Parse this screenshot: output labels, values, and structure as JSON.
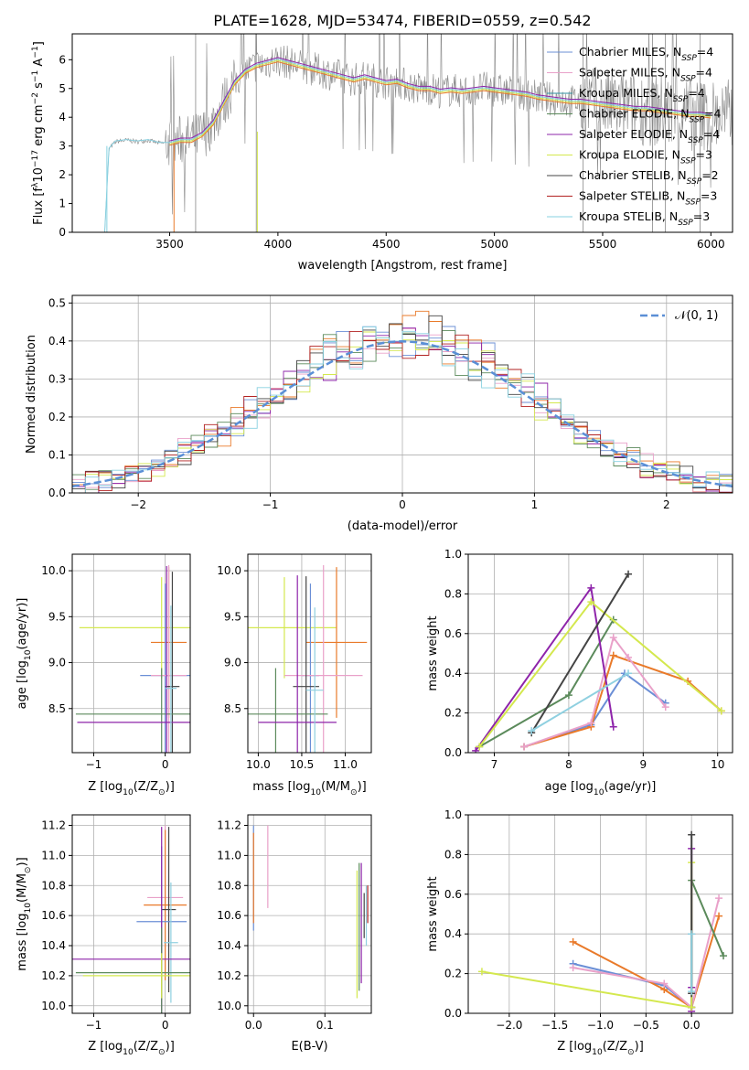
{
  "colors": {
    "series": [
      "#6b8fd6",
      "#e9a1c9",
      "#2e8fa0",
      "#5b8a5b",
      "#8e24aa",
      "#d4e84e",
      "#444444",
      "#b22222",
      "#87d0e0"
    ],
    "marker_series": [
      "#6b8fd6",
      "#e97a2a",
      "#e9a1c9",
      "#5b8a5b",
      "#8e24aa",
      "#d4e84e",
      "#444444",
      "#8fd0e0"
    ],
    "normal_line": "#5a8fd6",
    "noise": "#888888"
  },
  "chart_data": [
    {
      "id": "spectrum",
      "type": "line",
      "title": "PLATE=1628, MJD=53474, FIBERID=0559, z=0.542",
      "xlabel": "wavelength [Angstrom, rest frame]",
      "ylabel": "Flux [f",
      "ylabel_parts": [
        "Flux [f",
        "λ",
        "10",
        "−17",
        " erg cm",
        "−2",
        " s",
        "−1",
        " A",
        "−1",
        "]"
      ],
      "xlim": [
        3050,
        6100
      ],
      "ylim": [
        0,
        6.9
      ],
      "xticks": [
        "3500",
        "4000",
        "4500",
        "5000",
        "5500",
        "6000"
      ],
      "yticks": [
        "0",
        "1",
        "2",
        "3",
        "4",
        "5",
        "6"
      ],
      "legend_position": "top-right",
      "legend": [
        {
          "name": "Chabrier MILES, N",
          "nssp": "4"
        },
        {
          "name": "Salpeter MILES, N",
          "nssp": "4"
        },
        {
          "name": "Kroupa MILES, N",
          "nssp": "4"
        },
        {
          "name": "Chabrier ELODIE, N",
          "nssp": "4"
        },
        {
          "name": "Salpeter ELODIE, N",
          "nssp": "4"
        },
        {
          "name": "Kroupa ELODIE, N",
          "nssp": "3"
        },
        {
          "name": "Chabrier STELIB, N",
          "nssp": "2"
        },
        {
          "name": "Salpeter STELIB, N",
          "nssp": "3"
        },
        {
          "name": "Kroupa STELIB, N",
          "nssp": "3"
        }
      ],
      "model_curve": {
        "x": [
          3200,
          3220,
          3250,
          3300,
          3350,
          3400,
          3450,
          3500,
          3550,
          3600,
          3650,
          3700,
          3750,
          3800,
          3850,
          3900,
          3950,
          4000,
          4050,
          4100,
          4150,
          4200,
          4250,
          4300,
          4350,
          4400,
          4450,
          4500,
          4550,
          4600,
          4650,
          4700,
          4750,
          4800,
          4850,
          4900,
          4950,
          5000,
          5050,
          5100,
          5150,
          5200,
          5250,
          5300,
          5350,
          5400,
          5450,
          5500,
          5550,
          5600,
          5650,
          5700,
          5750,
          5800,
          5850,
          5900,
          5950,
          6000
        ],
        "y": [
          0,
          2.9,
          3.15,
          3.2,
          3.15,
          3.2,
          3.1,
          3.1,
          3.2,
          3.2,
          3.4,
          3.8,
          4.5,
          5.2,
          5.6,
          5.8,
          5.9,
          6.0,
          5.9,
          5.8,
          5.7,
          5.6,
          5.5,
          5.4,
          5.3,
          5.4,
          5.3,
          5.2,
          5.25,
          5.1,
          5.0,
          5.0,
          4.9,
          4.95,
          4.9,
          4.95,
          5.0,
          4.95,
          4.9,
          4.85,
          4.8,
          4.7,
          4.65,
          4.6,
          4.55,
          4.55,
          4.5,
          4.45,
          4.4,
          4.35,
          4.3,
          4.3,
          4.25,
          4.2,
          4.15,
          4.1,
          4.1,
          4.05
        ]
      }
    },
    {
      "id": "residuals",
      "type": "line",
      "xlabel": "(data-model)/error",
      "ylabel": "Normed distribution",
      "xlim": [
        -2.5,
        2.5
      ],
      "ylim": [
        0,
        0.52
      ],
      "xticks": [
        {
          "v": -2,
          "t": "−2"
        },
        {
          "v": -1,
          "t": "−1"
        },
        {
          "v": 0,
          "t": "0"
        },
        {
          "v": 1,
          "t": "1"
        },
        {
          "v": 2,
          "t": "2"
        }
      ],
      "yticks": [
        "0.0",
        "0.1",
        "0.2",
        "0.3",
        "0.4",
        "0.5"
      ],
      "legend": "𝒩(0, 1)",
      "legend_position": "top-right",
      "normal": {
        "mean": 0,
        "sigma": 1
      }
    },
    {
      "id": "age-vs-Z",
      "type": "scatter",
      "xlabel": "Z [log",
      "xlabel_parts": [
        "Z [log",
        "10",
        "(Z/Z",
        "⊙",
        ")]"
      ],
      "ylabel_parts": [
        "age  [log",
        "10",
        "(age/yr)]"
      ],
      "xlim": [
        -1.3,
        0.35
      ],
      "ylim": [
        8.02,
        10.18
      ],
      "xticks": [
        {
          "v": -1,
          "t": "−1"
        },
        {
          "v": 0,
          "t": "0"
        }
      ],
      "yticks": [
        "8.5",
        "9.0",
        "9.5",
        "10.0"
      ]
    },
    {
      "id": "age-vs-mass",
      "type": "scatter",
      "xlabel_parts": [
        "mass [log",
        "10",
        "(M/M",
        "⊙",
        ")]"
      ],
      "xlim": [
        9.88,
        11.3
      ],
      "ylim": [
        8.02,
        10.18
      ],
      "xticks": [
        {
          "v": 10,
          "t": "10.0"
        },
        {
          "v": 10.5,
          "t": "10.5"
        },
        {
          "v": 11,
          "t": "11.0"
        }
      ],
      "yticks": [
        "8.5",
        "9.0",
        "9.5",
        "10.0"
      ]
    },
    {
      "id": "massweight-vs-age",
      "type": "line",
      "xlabel_parts": [
        "age  [log",
        "10",
        "(age/yr)]"
      ],
      "ylabel": "mass weight",
      "xlim": [
        6.65,
        10.2
      ],
      "ylim": [
        0,
        1
      ],
      "xticks": [
        "7",
        "8",
        "9",
        "10"
      ],
      "yticks": [
        "0.0",
        "0.2",
        "0.4",
        "0.6",
        "0.8",
        "1.0"
      ],
      "series": [
        {
          "color": "#6b8fd6",
          "x": [
            7.4,
            8.3,
            8.75,
            9.3
          ],
          "y": [
            0.03,
            0.14,
            0.4,
            0.25
          ]
        },
        {
          "color": "#e97a2a",
          "x": [
            7.4,
            8.3,
            8.6,
            9.6,
            10.05
          ],
          "y": [
            0.03,
            0.13,
            0.49,
            0.36,
            0.21
          ]
        },
        {
          "color": "#e9a1c9",
          "x": [
            7.4,
            8.3,
            8.6,
            8.8,
            9.3
          ],
          "y": [
            0.03,
            0.15,
            0.58,
            0.48,
            0.23
          ]
        },
        {
          "color": "#5b8a5b",
          "x": [
            6.8,
            8.0,
            8.6
          ],
          "y": [
            0.03,
            0.29,
            0.67
          ]
        },
        {
          "color": "#8e24aa",
          "x": [
            6.75,
            8.3,
            8.6
          ],
          "y": [
            0.01,
            0.83,
            0.13
          ]
        },
        {
          "color": "#d4e84e",
          "x": [
            6.8,
            8.3,
            10.05
          ],
          "y": [
            0.03,
            0.76,
            0.21
          ]
        },
        {
          "color": "#444444",
          "x": [
            7.5,
            8.8
          ],
          "y": [
            0.1,
            0.9
          ]
        },
        {
          "color": "#8fd0e0",
          "x": [
            7.5,
            8.8
          ],
          "y": [
            0.11,
            0.4
          ]
        }
      ]
    },
    {
      "id": "mass-vs-Z",
      "type": "scatter",
      "xlabel_parts": [
        "Z [log",
        "10",
        "(Z/Z",
        "⊙",
        ")]"
      ],
      "ylabel_parts": [
        "mass [log",
        "10",
        "(M/M",
        "⊙",
        ")]"
      ],
      "xlim": [
        -1.3,
        0.35
      ],
      "ylim": [
        9.95,
        11.27
      ],
      "xticks": [
        {
          "v": -1,
          "t": "−1"
        },
        {
          "v": 0,
          "t": "0"
        }
      ],
      "yticks": [
        "10.0",
        "10.2",
        "10.4",
        "10.6",
        "10.8",
        "11.0",
        "11.2"
      ]
    },
    {
      "id": "mass-vs-ebv",
      "type": "scatter",
      "xlabel": "E(B-V)",
      "xlim": [
        -0.008,
        0.165
      ],
      "ylim": [
        9.95,
        11.27
      ],
      "xticks": [
        {
          "v": 0,
          "t": "0.0"
        },
        {
          "v": 0.1,
          "t": "0.1"
        }
      ],
      "yticks": [
        "10.0",
        "10.2",
        "10.4",
        "10.6",
        "10.8",
        "11.0",
        "11.2"
      ]
    },
    {
      "id": "massweight-vs-Z",
      "type": "line",
      "xlabel_parts": [
        "Z [log",
        "10",
        "(Z/Z",
        "⊙",
        ")]"
      ],
      "ylabel": "mass weight",
      "xlim": [
        -2.45,
        0.45
      ],
      "ylim": [
        0,
        1
      ],
      "xticks": [
        {
          "v": -2,
          "t": "−2.0"
        },
        {
          "v": -1.5,
          "t": "−1.5"
        },
        {
          "v": -1,
          "t": "−1.0"
        },
        {
          "v": -0.5,
          "t": "−0.5"
        },
        {
          "v": 0,
          "t": "0.0"
        }
      ],
      "yticks": [
        "0.0",
        "0.2",
        "0.4",
        "0.6",
        "0.8",
        "1.0"
      ],
      "series": [
        {
          "color": "#6b8fd6",
          "x": [
            -1.3,
            -0.3,
            0.0,
            0.0
          ],
          "y": [
            0.25,
            0.14,
            0.03,
            0.4
          ]
        },
        {
          "color": "#e97a2a",
          "x": [
            -1.3,
            -0.3,
            0.0,
            0.3
          ],
          "y": [
            0.36,
            0.12,
            0.03,
            0.49
          ]
        },
        {
          "color": "#e9a1c9",
          "x": [
            -1.3,
            -0.3,
            0.0,
            0.3
          ],
          "y": [
            0.23,
            0.15,
            0.03,
            0.58
          ]
        },
        {
          "color": "#5b8a5b",
          "x": [
            0.0,
            0.0,
            0.35
          ],
          "y": [
            0.03,
            0.67,
            0.29
          ]
        },
        {
          "color": "#8e24aa",
          "x": [
            0.0,
            0.0,
            0.0
          ],
          "y": [
            0.01,
            0.83,
            0.13
          ]
        },
        {
          "color": "#d4e84e",
          "x": [
            -2.3,
            0.0,
            0.0
          ],
          "y": [
            0.21,
            0.03,
            0.76
          ]
        },
        {
          "color": "#444444",
          "x": [
            0.0,
            0.0
          ],
          "y": [
            0.1,
            0.9
          ]
        },
        {
          "color": "#8fd0e0",
          "x": [
            0.0,
            0.0
          ],
          "y": [
            0.11,
            0.4
          ]
        }
      ]
    }
  ]
}
